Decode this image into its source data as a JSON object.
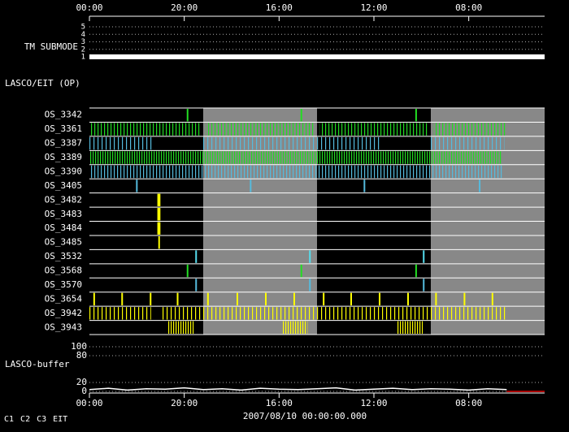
{
  "chart_data": {
    "type": "timeline",
    "xlim": [
      0,
      96
    ],
    "xticks": [
      {
        "value": 0,
        "label": "00:00"
      },
      {
        "value": 20,
        "label": "20:00"
      },
      {
        "value": 40,
        "label": "16:00"
      },
      {
        "value": 60,
        "label": "12:00"
      },
      {
        "value": 80,
        "label": "08:00"
      }
    ],
    "x_label": "2007/08/10 00:00:00.000",
    "shaded": [
      [
        24,
        48
      ],
      [
        72,
        96
      ]
    ],
    "submode": {
      "label": "TM SUBMODE",
      "ylim": [
        1,
        5
      ],
      "yticks": [
        1,
        2,
        3,
        4,
        5
      ],
      "x": [
        0,
        96
      ],
      "values": [
        1,
        1
      ],
      "color": "#ffffff"
    },
    "op_label": "LASCO/EIT (OP)",
    "rows": [
      {
        "name": "OS_3342",
        "color": "#22dd22",
        "events": [
          20.7,
          44.7,
          68.9
        ]
      },
      {
        "name": "OS_3361",
        "color": "#22dd22",
        "spans": [
          [
            0,
            23.5
          ],
          [
            24.5,
            47.5
          ],
          [
            48.5,
            71.5
          ],
          [
            72.5,
            88
          ]
        ]
      },
      {
        "name": "OS_3387",
        "color": "#55bbdd",
        "spans": [
          [
            0,
            13.5
          ],
          [
            23.7,
            47.5
          ],
          [
            48,
            61.5
          ],
          [
            72,
            87.5
          ]
        ]
      },
      {
        "name": "OS_3389",
        "color": "#22dd22",
        "spans": [
          [
            0,
            87
          ]
        ]
      },
      {
        "name": "OS_3390",
        "color": "#55bbdd",
        "spans": [
          [
            0,
            87
          ]
        ]
      },
      {
        "name": "OS_3405",
        "color": "#55bbdd",
        "events": [
          10,
          34,
          58,
          82.3
        ]
      },
      {
        "name": "OS_3482",
        "color": "#ffff00",
        "events": [
          14.5,
          14.8
        ]
      },
      {
        "name": "OS_3483",
        "color": "#ffff00",
        "events": [
          14.5,
          14.8
        ]
      },
      {
        "name": "OS_3484",
        "color": "#ffff00",
        "events": [
          14.5,
          14.8
        ]
      },
      {
        "name": "OS_3485",
        "color": "#ffff00",
        "events": [
          14.7
        ]
      },
      {
        "name": "OS_3532",
        "color": "#55ddee",
        "events": [
          22.5,
          46.5,
          70.5
        ]
      },
      {
        "name": "OS_3568",
        "color": "#22dd22",
        "events": [
          20.7,
          44.7,
          68.9
        ]
      },
      {
        "name": "OS_3570",
        "color": "#55bbdd",
        "events": [
          22.5,
          46.5,
          70.5
        ]
      },
      {
        "name": "OS_3654",
        "color": "#ffff00",
        "events": [
          1,
          6.9,
          12.9,
          18.6,
          25,
          31.2,
          37.2,
          43.2,
          49.4,
          55.2,
          61.2,
          67.2,
          73.1,
          79.1,
          85
        ]
      },
      {
        "name": "OS_3942",
        "color": "#ffff00",
        "spans": [
          [
            0,
            13
          ],
          [
            15,
            88
          ]
        ]
      },
      {
        "name": "OS_3943",
        "color": "#ffff00",
        "spans": [
          [
            16.6,
            22
          ],
          [
            40.8,
            46
          ],
          [
            64.8,
            70.3
          ]
        ]
      }
    ],
    "buffer": {
      "label": "LASCO-buffer",
      "ylim": [
        0,
        100
      ],
      "yticks": [
        0,
        20,
        80,
        100
      ],
      "series": [
        {
          "color": "#ffffff",
          "x": [
            0,
            4,
            8,
            12,
            16,
            20,
            24,
            28,
            32,
            36,
            40,
            44,
            48,
            52,
            56,
            60,
            64,
            68,
            72,
            76,
            80,
            84,
            88
          ],
          "values": [
            4,
            7,
            3,
            6,
            5,
            8,
            4,
            6,
            3,
            7,
            5,
            4,
            6,
            8,
            3,
            5,
            7,
            4,
            6,
            5,
            3,
            6,
            4
          ]
        },
        {
          "color": "#e00000",
          "x": [
            88,
            96
          ],
          "values": [
            0,
            0
          ]
        }
      ]
    },
    "legend": [
      {
        "name": "C1",
        "color": "#ff3030"
      },
      {
        "name": "C2",
        "color": "#22dd22"
      },
      {
        "name": "C3",
        "color": "#55ddee"
      },
      {
        "name": "EIT",
        "color": "#ffffff"
      }
    ]
  }
}
